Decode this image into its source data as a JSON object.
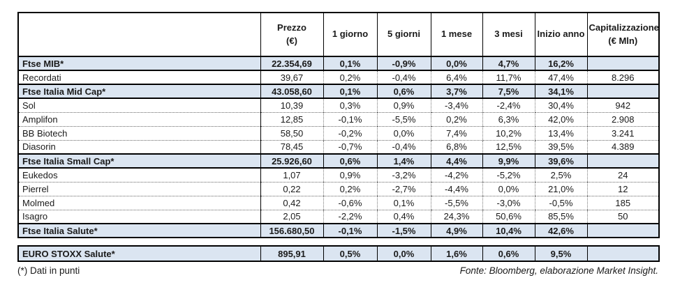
{
  "chart_data": {
    "type": "table",
    "columns": [
      {
        "id": "name",
        "label": "",
        "label2": ""
      },
      {
        "id": "prezzo",
        "label": "Prezzo",
        "label2": "(€)"
      },
      {
        "id": "g1",
        "label": "1 giorno",
        "label2": ""
      },
      {
        "id": "g5",
        "label": "5 giorni",
        "label2": ""
      },
      {
        "id": "m1",
        "label": "1 mese",
        "label2": ""
      },
      {
        "id": "m3",
        "label": "3 mesi",
        "label2": ""
      },
      {
        "id": "inizio",
        "label": "Inizio anno",
        "label2": ""
      },
      {
        "id": "cap",
        "label": "Capitalizzazione",
        "label2": "(€ Mln)"
      }
    ],
    "rows": [
      {
        "type": "index",
        "name": "Ftse MIB*",
        "prezzo": "22.354,69",
        "g1": "0,1%",
        "g5": "-0,9%",
        "m1": "0,0%",
        "m3": "4,7%",
        "inizio": "16,2%",
        "cap": ""
      },
      {
        "type": "stock",
        "name": "Recordati",
        "prezzo": "39,67",
        "g1": "0,2%",
        "g5": "-0,4%",
        "m1": "6,4%",
        "m3": "11,7%",
        "inizio": "47,4%",
        "cap": "8.296"
      },
      {
        "type": "index",
        "name": "Ftse Italia Mid Cap*",
        "prezzo": "43.058,60",
        "g1": "0,1%",
        "g5": "0,6%",
        "m1": "3,7%",
        "m3": "7,5%",
        "inizio": "34,1%",
        "cap": ""
      },
      {
        "type": "stock",
        "name": "Sol",
        "prezzo": "10,39",
        "g1": "0,3%",
        "g5": "0,9%",
        "m1": "-3,4%",
        "m3": "-2,4%",
        "inizio": "30,4%",
        "cap": "942"
      },
      {
        "type": "stock",
        "name": "Amplifon",
        "prezzo": "12,85",
        "g1": "-0,1%",
        "g5": "-5,5%",
        "m1": "0,2%",
        "m3": "6,3%",
        "inizio": "42,0%",
        "cap": "2.908"
      },
      {
        "type": "stock",
        "name": "BB Biotech",
        "prezzo": "58,50",
        "g1": "-0,2%",
        "g5": "0,0%",
        "m1": "7,4%",
        "m3": "10,2%",
        "inizio": "13,4%",
        "cap": "3.241"
      },
      {
        "type": "stock",
        "name": "Diasorin",
        "prezzo": "78,45",
        "g1": "-0,7%",
        "g5": "-0,4%",
        "m1": "6,8%",
        "m3": "12,5%",
        "inizio": "39,5%",
        "cap": "4.389"
      },
      {
        "type": "index",
        "name": "Ftse Italia Small Cap*",
        "prezzo": "25.926,60",
        "g1": "0,6%",
        "g5": "1,4%",
        "m1": "4,4%",
        "m3": "9,9%",
        "inizio": "39,6%",
        "cap": ""
      },
      {
        "type": "stock",
        "name": "Eukedos",
        "prezzo": "1,07",
        "g1": "0,9%",
        "g5": "-3,2%",
        "m1": "-4,2%",
        "m3": "-5,2%",
        "inizio": "2,5%",
        "cap": "24"
      },
      {
        "type": "stock",
        "name": "Pierrel",
        "prezzo": "0,22",
        "g1": "0,2%",
        "g5": "-2,7%",
        "m1": "-4,4%",
        "m3": "0,0%",
        "inizio": "21,0%",
        "cap": "12"
      },
      {
        "type": "stock",
        "name": "Molmed",
        "prezzo": "0,42",
        "g1": "-0,6%",
        "g5": "0,1%",
        "m1": "-5,5%",
        "m3": "-3,0%",
        "inizio": "-0,5%",
        "cap": "185"
      },
      {
        "type": "stock",
        "name": "Isagro",
        "prezzo": "2,05",
        "g1": "-2,2%",
        "g5": "0,4%",
        "m1": "24,3%",
        "m3": "50,6%",
        "inizio": "85,5%",
        "cap": "50"
      },
      {
        "type": "index",
        "name": "Ftse Italia Salute*",
        "prezzo": "156.680,50",
        "g1": "-0,1%",
        "g5": "-1,5%",
        "m1": "4,9%",
        "m3": "10,4%",
        "inizio": "42,6%",
        "cap": ""
      }
    ],
    "detached_rows": [
      {
        "type": "index",
        "name": "EURO STOXX Salute*",
        "prezzo": "895,91",
        "g1": "0,5%",
        "g5": "0,0%",
        "m1": "1,6%",
        "m3": "0,6%",
        "inizio": "9,5%",
        "cap": ""
      }
    ],
    "footnote": "(*) Dati in punti",
    "source": "Fonte: Bloomberg, elaborazione Market Insight.",
    "layout": {
      "grid": "bordered table",
      "index_rows_highlighted": true
    }
  },
  "colors": {
    "index_row_bg": "#dbe5f1",
    "border": "#000000",
    "dotted_border": "#666666",
    "text": "#1a1a1a",
    "background": "#ffffff"
  }
}
